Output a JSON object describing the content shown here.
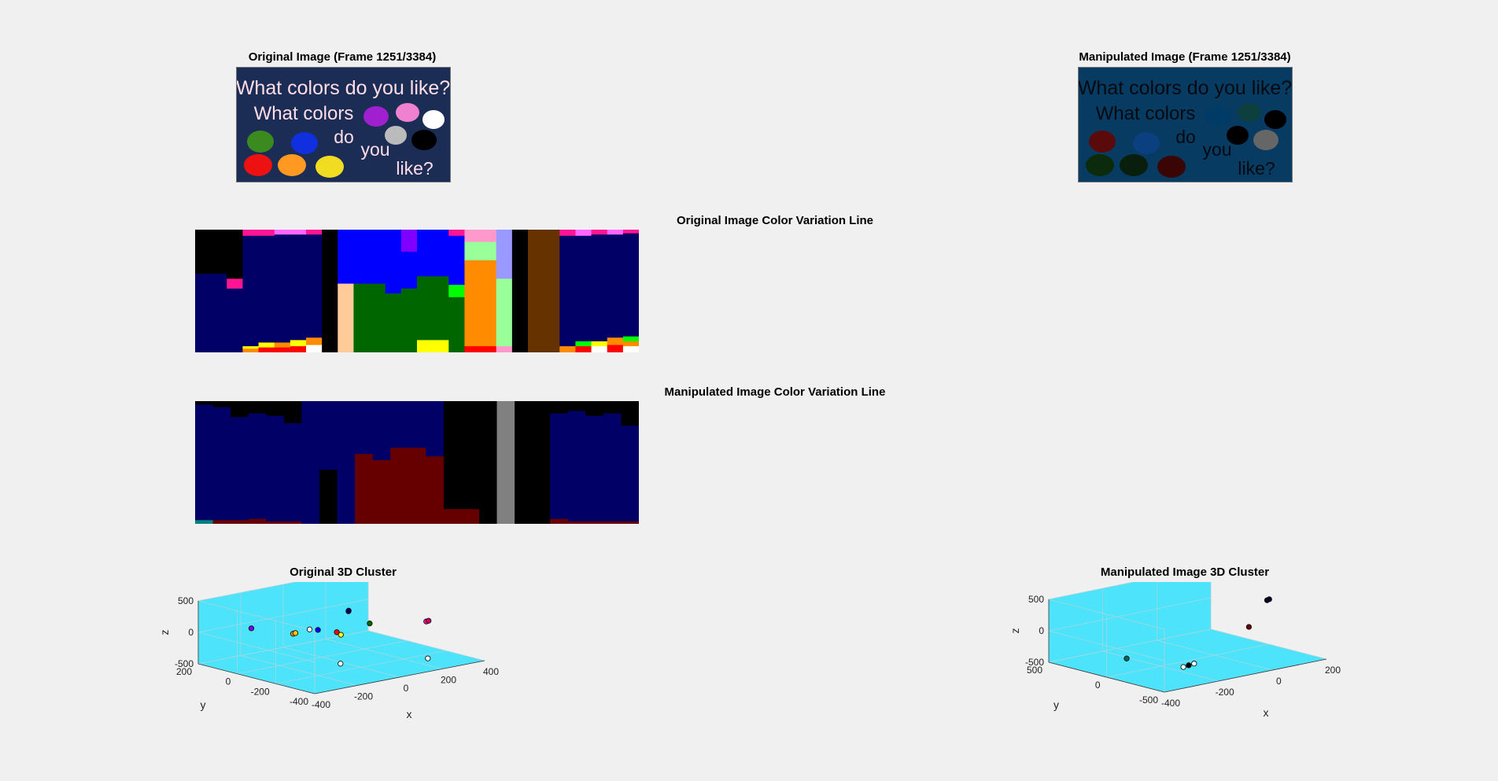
{
  "panels": {
    "original_image": {
      "title": "Original Image (Frame 1251/3384)",
      "caption": {
        "line1": "What colors do you like?",
        "line2": "What colors",
        "word_do": "do",
        "word_you": "you",
        "word_like": "like?"
      },
      "bg_color": "#1c2d55",
      "text_color": "#ffdde6",
      "blobs": [
        "#a020d0",
        "#f080d0",
        "#ffffff",
        "#3a8a20",
        "#1030e0",
        "#bbbbbb",
        "#000000",
        "#ee1111",
        "#ff9922",
        "#f0dd22"
      ]
    },
    "manipulated_image": {
      "title": "Manipulated Image (Frame 1251/3384)",
      "caption": {
        "line1": "What colors do you like?",
        "line2": "What colors",
        "word_do": "do",
        "word_you": "you",
        "word_like": "like?"
      },
      "bg_color": "#073b62",
      "text_color": "#050a10",
      "blobs": [
        "#003a66",
        "#0d3f3f",
        "#000000",
        "#5a0a0a",
        "#0a4080",
        "#000000",
        "#666666",
        "#0c2a0c",
        "#091e0c",
        "#3a0505"
      ]
    },
    "original_line": {
      "title": "Original Image Color Variation Line"
    },
    "manipulated_line": {
      "title": "Manipulated Image Color Variation Line"
    },
    "original_cluster": {
      "title": "Original 3D Cluster"
    },
    "manipulated_cluster": {
      "title": "Manipulated Image 3D Cluster"
    }
  },
  "chart_data": [
    {
      "type": "heatmap",
      "name": "original-color-variation-line",
      "title": "Original Image Color Variation Line",
      "columns": [
        {
          "w": 2,
          "segs": [
            [
              "#000000",
              36
            ],
            [
              "#000066",
              64
            ]
          ]
        },
        {
          "w": 1,
          "segs": [
            [
              "#000000",
              40
            ],
            [
              "#ff1493",
              8
            ],
            [
              "#000066",
              52
            ]
          ]
        },
        {
          "w": 1,
          "segs": [
            [
              "#ff1493",
              5
            ],
            [
              "#000066",
              90
            ],
            [
              "#ffff00",
              2
            ],
            [
              "#ff8c00",
              3
            ]
          ]
        },
        {
          "w": 1,
          "segs": [
            [
              "#ff1493",
              5
            ],
            [
              "#000066",
              87
            ],
            [
              "#ffff00",
              4
            ],
            [
              "#ff0000",
              4
            ]
          ]
        },
        {
          "w": 1,
          "segs": [
            [
              "#ff66ff",
              4
            ],
            [
              "#000066",
              88
            ],
            [
              "#ff8c00",
              4
            ],
            [
              "#ff0000",
              4
            ]
          ]
        },
        {
          "w": 1,
          "segs": [
            [
              "#ff66ff",
              4
            ],
            [
              "#000066",
              86
            ],
            [
              "#ffff00",
              5
            ],
            [
              "#ff0000",
              5
            ]
          ]
        },
        {
          "w": 1,
          "segs": [
            [
              "#ff1493",
              4
            ],
            [
              "#000066",
              84
            ],
            [
              "#ff8c00",
              6
            ],
            [
              "#ffffff",
              6
            ]
          ]
        },
        {
          "w": 1,
          "segs": [
            [
              "#000000",
              100
            ]
          ]
        },
        {
          "w": 1,
          "segs": [
            [
              "#0000ff",
              44
            ],
            [
              "#ffcc99",
              56
            ]
          ]
        },
        {
          "w": 2,
          "segs": [
            [
              "#0000ff",
              44
            ],
            [
              "#006600",
              56
            ]
          ]
        },
        {
          "w": 1,
          "segs": [
            [
              "#0000ff",
              52
            ],
            [
              "#006600",
              48
            ]
          ]
        },
        {
          "w": 1,
          "segs": [
            [
              "#8000ff",
              18
            ],
            [
              "#0000ff",
              30
            ],
            [
              "#006600",
              52
            ]
          ]
        },
        {
          "w": 2,
          "segs": [
            [
              "#0000ff",
              38
            ],
            [
              "#006600",
              52
            ],
            [
              "#ffff00",
              10
            ]
          ]
        },
        {
          "w": 1,
          "segs": [
            [
              "#ff1493",
              5
            ],
            [
              "#0000ff",
              40
            ],
            [
              "#00ff00",
              10
            ],
            [
              "#006600",
              45
            ]
          ]
        },
        {
          "w": 2,
          "segs": [
            [
              "#ff99cc",
              10
            ],
            [
              "#99ff99",
              15
            ],
            [
              "#ff8c00",
              70
            ],
            [
              "#ff0000",
              5
            ]
          ]
        },
        {
          "w": 1,
          "segs": [
            [
              "#9999ff",
              40
            ],
            [
              "#99ff99",
              55
            ],
            [
              "#ff99cc",
              5
            ]
          ]
        },
        {
          "w": 1,
          "segs": [
            [
              "#000000",
              100
            ]
          ]
        },
        {
          "w": 2,
          "segs": [
            [
              "#663300",
              100
            ]
          ]
        },
        {
          "w": 1,
          "segs": [
            [
              "#ff1493",
              5
            ],
            [
              "#000066",
              90
            ],
            [
              "#ff8c00",
              5
            ]
          ]
        },
        {
          "w": 1,
          "segs": [
            [
              "#ff66ff",
              5
            ],
            [
              "#000066",
              86
            ],
            [
              "#00ff00",
              4
            ],
            [
              "#ff0000",
              5
            ]
          ]
        },
        {
          "w": 1,
          "segs": [
            [
              "#ff1493",
              4
            ],
            [
              "#000066",
              87
            ],
            [
              "#ffff00",
              4
            ],
            [
              "#ffffff",
              5
            ]
          ]
        },
        {
          "w": 1,
          "segs": [
            [
              "#ff66ff",
              4
            ],
            [
              "#000066",
              84
            ],
            [
              "#ff8c00",
              6
            ],
            [
              "#ff0000",
              6
            ]
          ]
        },
        {
          "w": 1,
          "segs": [
            [
              "#ff1493",
              3
            ],
            [
              "#000066",
              84
            ],
            [
              "#00ff00",
              4
            ],
            [
              "#ff8c00",
              4
            ],
            [
              "#ffffff",
              5
            ]
          ]
        }
      ]
    },
    {
      "type": "heatmap",
      "name": "manipulated-color-variation-line",
      "title": "Manipulated Image Color Variation Line",
      "columns": [
        {
          "w": 1,
          "segs": [
            [
              "#000000",
              3
            ],
            [
              "#000066",
              94
            ],
            [
              "#008080",
              3
            ]
          ]
        },
        {
          "w": 1,
          "segs": [
            [
              "#000000",
              5
            ],
            [
              "#000066",
              92
            ],
            [
              "#660000",
              3
            ]
          ]
        },
        {
          "w": 1,
          "segs": [
            [
              "#000000",
              13
            ],
            [
              "#000066",
              84
            ],
            [
              "#660000",
              3
            ]
          ]
        },
        {
          "w": 1,
          "segs": [
            [
              "#000000",
              10
            ],
            [
              "#000066",
              86
            ],
            [
              "#660000",
              4
            ]
          ]
        },
        {
          "w": 1,
          "segs": [
            [
              "#000000",
              12
            ],
            [
              "#000066",
              86
            ],
            [
              "#660000",
              2
            ]
          ]
        },
        {
          "w": 1,
          "segs": [
            [
              "#000000",
              18
            ],
            [
              "#000066",
              80
            ],
            [
              "#660000",
              2
            ]
          ]
        },
        {
          "w": 1,
          "segs": [
            [
              "#000066",
              100
            ]
          ]
        },
        {
          "w": 1,
          "segs": [
            [
              "#000066",
              56
            ],
            [
              "#000000",
              44
            ]
          ]
        },
        {
          "w": 1,
          "segs": [
            [
              "#000066",
              100
            ]
          ]
        },
        {
          "w": 1,
          "segs": [
            [
              "#000066",
              43
            ],
            [
              "#660000",
              57
            ]
          ]
        },
        {
          "w": 1,
          "segs": [
            [
              "#000066",
              48
            ],
            [
              "#660000",
              52
            ]
          ]
        },
        {
          "w": 2,
          "segs": [
            [
              "#000066",
              38
            ],
            [
              "#660000",
              62
            ]
          ]
        },
        {
          "w": 1,
          "segs": [
            [
              "#000066",
              45
            ],
            [
              "#660000",
              55
            ]
          ]
        },
        {
          "w": 2,
          "segs": [
            [
              "#000000",
              88
            ],
            [
              "#660000",
              12
            ]
          ]
        },
        {
          "w": 1,
          "segs": [
            [
              "#000000",
              100
            ]
          ]
        },
        {
          "w": 1,
          "segs": [
            [
              "#808080",
              100
            ]
          ]
        },
        {
          "w": 2,
          "segs": [
            [
              "#000000",
              100
            ]
          ]
        },
        {
          "w": 1,
          "segs": [
            [
              "#000000",
              10
            ],
            [
              "#000066",
              86
            ],
            [
              "#660000",
              4
            ]
          ]
        },
        {
          "w": 1,
          "segs": [
            [
              "#000000",
              8
            ],
            [
              "#000066",
              90
            ],
            [
              "#660000",
              2
            ]
          ]
        },
        {
          "w": 1,
          "segs": [
            [
              "#000000",
              12
            ],
            [
              "#000066",
              86
            ],
            [
              "#660000",
              2
            ]
          ]
        },
        {
          "w": 1,
          "segs": [
            [
              "#000000",
              10
            ],
            [
              "#000066",
              88
            ],
            [
              "#660000",
              2
            ]
          ]
        },
        {
          "w": 1,
          "segs": [
            [
              "#000000",
              20
            ],
            [
              "#000066",
              78
            ],
            [
              "#660000",
              2
            ]
          ]
        }
      ]
    },
    {
      "type": "scatter",
      "name": "original-3d-cluster",
      "title": "Original 3D Cluster",
      "xlabel": "x",
      "ylabel": "y",
      "zlabel": "z",
      "xlim": [
        -400,
        400
      ],
      "ylim": [
        -400,
        200
      ],
      "zlim": [
        -500,
        500
      ],
      "xticks": [
        -400,
        -200,
        0,
        200,
        400
      ],
      "yticks": [
        -400,
        -200,
        0,
        200
      ],
      "zticks": [
        -500,
        0,
        500
      ],
      "grid": true,
      "pane_color": "#4de3fb",
      "points": [
        {
          "x": -360,
          "y": -30,
          "z": 220,
          "c": "#8000ff"
        },
        {
          "x": -40,
          "y": -180,
          "z": 400,
          "c": "#000033"
        },
        {
          "x": -30,
          "y": -170,
          "z": 395,
          "c": "#000066"
        },
        {
          "x": -150,
          "y": -100,
          "z": 120,
          "c": "#ffffff"
        },
        {
          "x": -120,
          "y": -110,
          "z": 100,
          "c": "#0000ff"
        },
        {
          "x": -200,
          "y": -70,
          "z": 60,
          "c": "#ff8c00"
        },
        {
          "x": -180,
          "y": -60,
          "z": 50,
          "c": "#ffcc00"
        },
        {
          "x": -40,
          "y": -120,
          "z": 20,
          "c": "#ff0000"
        },
        {
          "x": -30,
          "y": -130,
          "z": -20,
          "c": "#ffff00"
        },
        {
          "x": 60,
          "y": -180,
          "z": 140,
          "c": "#006600"
        },
        {
          "x": 180,
          "y": -340,
          "z": 220,
          "c": "#ff1493"
        },
        {
          "x": 200,
          "y": -330,
          "z": 210,
          "c": "#cc0066"
        },
        {
          "x": -50,
          "y": -150,
          "z": -450,
          "c": "#ffffff"
        },
        {
          "x": 160,
          "y": -370,
          "z": -330,
          "c": "#ffffff"
        }
      ]
    },
    {
      "type": "scatter",
      "name": "manipulated-3d-cluster",
      "title": "Manipulated Image 3D Cluster",
      "xlabel": "x",
      "ylabel": "y",
      "zlabel": "z",
      "xlim": [
        -400,
        200
      ],
      "ylim": [
        -500,
        500
      ],
      "zlim": [
        -500,
        500
      ],
      "xticks": [
        -400,
        -200,
        0,
        200
      ],
      "yticks": [
        -500,
        0,
        500
      ],
      "zticks": [
        -500,
        0,
        500
      ],
      "grid": true,
      "pane_color": "#4de3fb",
      "points": [
        {
          "x": -330,
          "y": -10,
          "z": -260,
          "c": "#006666"
        },
        {
          "x": -180,
          "y": -150,
          "z": -460,
          "c": "#ffffff"
        },
        {
          "x": -160,
          "y": -150,
          "z": -450,
          "c": "#000000"
        },
        {
          "x": -140,
          "y": -150,
          "z": -440,
          "c": "#ffffff"
        },
        {
          "x": 20,
          "y": -250,
          "z": 50,
          "c": "#660000"
        },
        {
          "x": 100,
          "y": -220,
          "z": 390,
          "c": "#000000"
        },
        {
          "x": 110,
          "y": -215,
          "z": 395,
          "c": "#000033"
        }
      ]
    }
  ]
}
